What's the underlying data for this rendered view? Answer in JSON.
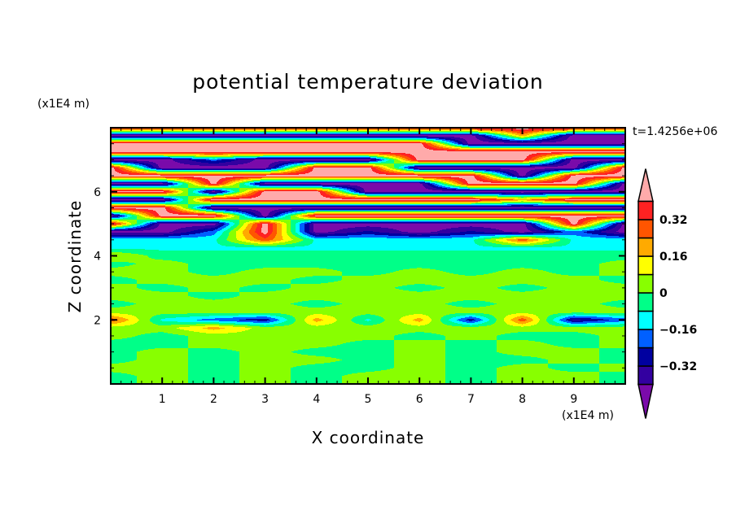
{
  "chart_data": {
    "type": "heatmap",
    "style": "filled-contour",
    "title": "potential temperature deviation",
    "xlabel": "X coordinate",
    "ylabel": "Z coordinate",
    "x_unit": "(x1E4 m)",
    "z_unit": "(x1E4 m)",
    "time_label": "t=1.4256e+06",
    "xlim": [
      0,
      10
    ],
    "zlim": [
      0,
      8
    ],
    "x_ticks": [
      "1",
      "2",
      "3",
      "4",
      "5",
      "6",
      "7",
      "8",
      "9"
    ],
    "z_ticks": [
      "2",
      "4",
      "6"
    ],
    "grid": false,
    "colorbar": {
      "position": "right",
      "levels": [
        -0.4,
        -0.32,
        -0.24,
        -0.16,
        -0.08,
        0,
        0.08,
        0.16,
        0.24,
        0.32,
        0.4
      ],
      "tick_labels": [
        {
          "value": 0.32,
          "label": "0.32"
        },
        {
          "value": 0.16,
          "label": "0.16"
        },
        {
          "value": 0,
          "label": "0"
        },
        {
          "value": -0.16,
          "label": "−0.16"
        },
        {
          "value": -0.32,
          "label": "−0.32"
        }
      ],
      "colors": [
        "#7a0aaa",
        "#3300a0",
        "#0000a0",
        "#0060ff",
        "#00ffff",
        "#00ff88",
        "#88ff00",
        "#ffff00",
        "#ffaa00",
        "#ff5500",
        "#ff2222",
        "#ffaaaa"
      ],
      "extend": "both"
    },
    "field": {
      "x": [
        0,
        1,
        2,
        3,
        4,
        5,
        6,
        7,
        8,
        9,
        10
      ],
      "z": [
        8,
        7.75,
        7.5,
        7.25,
        7,
        6.75,
        6.5,
        6.25,
        6,
        5.75,
        5.5,
        5.25,
        5,
        4.75,
        4.5,
        4.25,
        4,
        3.75,
        3.5,
        3.25,
        3,
        2.75,
        2.5,
        2.25,
        2,
        1.75,
        1.5,
        1.25,
        1,
        0.75,
        0.5,
        0.25,
        0
      ],
      "values": [
        [
          0.45,
          0.45,
          0.45,
          0.45,
          0.45,
          0.45,
          0.45,
          0.45,
          0.45,
          0.45,
          0.45
        ],
        [
          -0.45,
          -0.45,
          -0.45,
          -0.45,
          -0.45,
          -0.45,
          -0.45,
          -0.45,
          0.2,
          -0.45,
          -0.45
        ],
        [
          0.45,
          0.45,
          0.45,
          0.45,
          0.45,
          0.45,
          0.45,
          -0.45,
          -0.45,
          -0.45,
          -0.45
        ],
        [
          0.45,
          0.45,
          0.45,
          0.45,
          0.45,
          0.45,
          0.45,
          0.45,
          0.45,
          0.45,
          0.45
        ],
        [
          -0.45,
          -0.45,
          -0.2,
          -0.45,
          -0.45,
          -0.45,
          0.45,
          0.45,
          0.45,
          -0.45,
          -0.45
        ],
        [
          0.45,
          -0.45,
          -0.45,
          -0.45,
          0.45,
          0.45,
          -0.45,
          -0.45,
          -0.45,
          -0.45,
          0.45
        ],
        [
          0.45,
          0.45,
          0.45,
          0.45,
          0.45,
          0.45,
          0.45,
          0.45,
          -0.45,
          0.45,
          0.45
        ],
        [
          -0.45,
          -0.45,
          0.45,
          -0.45,
          -0.45,
          -0.45,
          -0.45,
          0.45,
          0.45,
          0.45,
          -0.45
        ],
        [
          0.45,
          0.45,
          -0.45,
          0.45,
          0.45,
          -0.45,
          -0.45,
          -0.45,
          -0.45,
          -0.45,
          -0.45
        ],
        [
          -0.45,
          -0.45,
          0.45,
          0.45,
          0.45,
          0.45,
          0.45,
          0.45,
          0.2,
          0.45,
          0.45
        ],
        [
          0.45,
          0.45,
          -0.45,
          -0.45,
          -0.45,
          -0.45,
          -0.45,
          -0.45,
          -0.45,
          -0.45,
          -0.45
        ],
        [
          -0.45,
          0.45,
          0.45,
          -0.45,
          0.45,
          0.45,
          0.45,
          0.45,
          0.45,
          0.45,
          0.45
        ],
        [
          0.45,
          -0.45,
          -0.45,
          0.45,
          -0.45,
          -0.45,
          -0.45,
          -0.45,
          -0.45,
          0.45,
          -0.45
        ],
        [
          -0.45,
          -0.45,
          -0.2,
          0.45,
          -0.45,
          -0.3,
          -0.45,
          -0.3,
          -0.45,
          -0.2,
          -0.45
        ],
        [
          -0.1,
          -0.1,
          -0.1,
          0.3,
          -0.1,
          -0.1,
          -0.1,
          -0.1,
          0.3,
          -0.1,
          -0.1
        ],
        [
          -0.1,
          -0.1,
          -0.1,
          -0.1,
          -0.1,
          -0.1,
          -0.1,
          -0.1,
          -0.1,
          -0.1,
          -0.1
        ],
        [
          0.1,
          -0.04,
          -0.04,
          -0.04,
          -0.04,
          -0.04,
          -0.04,
          -0.04,
          -0.04,
          -0.04,
          -0.04
        ],
        [
          -0.04,
          0.04,
          -0.04,
          -0.04,
          -0.04,
          -0.04,
          -0.04,
          -0.04,
          -0.04,
          -0.04,
          0.04
        ],
        [
          0.04,
          0.04,
          -0.04,
          0.04,
          0.04,
          -0.04,
          0.04,
          -0.04,
          0.04,
          -0.04,
          0.04
        ],
        [
          -0.04,
          0.04,
          0.04,
          0.04,
          -0.04,
          0.04,
          0.04,
          0.04,
          0.04,
          0.04,
          -0.04
        ],
        [
          0.04,
          -0.04,
          0.04,
          -0.04,
          0.04,
          0.04,
          -0.04,
          0.04,
          -0.04,
          0.04,
          0.04
        ],
        [
          0.04,
          0.04,
          -0.04,
          0.04,
          0.04,
          0.04,
          0.04,
          0.04,
          0.04,
          0.04,
          0.04
        ],
        [
          -0.04,
          0.04,
          0.04,
          0.04,
          -0.04,
          0.04,
          0.04,
          -0.04,
          0.04,
          0.04,
          -0.04
        ],
        [
          0.04,
          0.04,
          0.04,
          0.04,
          0.04,
          0.04,
          0.04,
          0.04,
          0.04,
          0.04,
          0.04
        ],
        [
          0.3,
          -0.1,
          -0.2,
          -0.3,
          0.2,
          -0.1,
          0.2,
          -0.3,
          0.3,
          -0.35,
          -0.2
        ],
        [
          0.04,
          0.04,
          0.2,
          0.04,
          0.04,
          0.04,
          0.04,
          0.04,
          0.04,
          0.04,
          0.04
        ],
        [
          0.04,
          -0.04,
          0.04,
          0.04,
          0.04,
          0.04,
          -0.04,
          0.04,
          -0.04,
          -0.04,
          0.04
        ],
        [
          -0.04,
          -0.04,
          0.04,
          0.04,
          0.04,
          -0.04,
          0.04,
          -0.04,
          0.04,
          -0.04,
          0.04
        ],
        [
          -0.04,
          0.04,
          -0.04,
          0.04,
          -0.04,
          -0.04,
          0.04,
          -0.04,
          0.04,
          0.04,
          -0.04
        ],
        [
          -0.04,
          0.04,
          -0.04,
          0.04,
          0.04,
          -0.04,
          0.04,
          -0.04,
          -0.04,
          0.04,
          -0.04
        ],
        [
          0.04,
          0.04,
          -0.04,
          0.04,
          -0.04,
          -0.04,
          0.04,
          -0.04,
          0.04,
          -0.04,
          0.04
        ],
        [
          -0.04,
          0.04,
          -0.04,
          0.04,
          -0.04,
          0.04,
          0.04,
          -0.04,
          0.04,
          0.04,
          -0.04
        ],
        [
          -0.04,
          0.04,
          -0.04,
          0.04,
          -0.04,
          0.04,
          0.04,
          -0.04,
          0.04,
          0.04,
          -0.04
        ]
      ]
    }
  }
}
